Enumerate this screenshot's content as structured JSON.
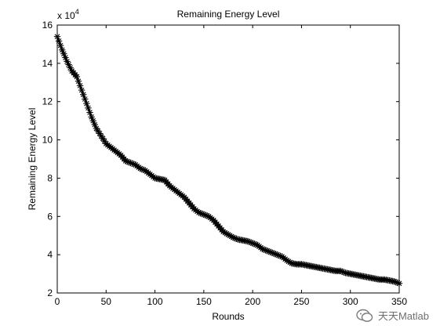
{
  "chart_data": {
    "type": "line",
    "title": "Remaining Energy Level",
    "xlabel": "Rounds",
    "ylabel": "Remaining Energy Level",
    "y_exponent_label": "x 10",
    "y_exponent_power": "4",
    "xlim": [
      0,
      350
    ],
    "ylim": [
      2,
      16
    ],
    "xticks": [
      0,
      50,
      100,
      150,
      200,
      250,
      300,
      350
    ],
    "yticks": [
      2,
      4,
      6,
      8,
      10,
      12,
      14,
      16
    ],
    "grid": false,
    "marker": "asterisk",
    "series": [
      {
        "color": "#000000",
        "x": [
          0,
          5,
          10,
          15,
          20,
          25,
          30,
          35,
          40,
          45,
          50,
          55,
          60,
          65,
          70,
          75,
          80,
          85,
          90,
          95,
          100,
          105,
          110,
          115,
          120,
          125,
          130,
          135,
          140,
          145,
          150,
          155,
          160,
          165,
          170,
          175,
          180,
          185,
          190,
          195,
          200,
          205,
          210,
          215,
          220,
          225,
          230,
          235,
          240,
          245,
          250,
          255,
          260,
          265,
          270,
          275,
          280,
          285,
          290,
          295,
          300,
          305,
          310,
          315,
          320,
          325,
          330,
          335,
          340,
          345,
          350
        ],
        "values": [
          15.4,
          14.7,
          14.1,
          13.6,
          13.3,
          12.6,
          11.9,
          11.2,
          10.6,
          10.2,
          9.8,
          9.6,
          9.4,
          9.2,
          8.9,
          8.8,
          8.7,
          8.5,
          8.4,
          8.2,
          8.0,
          7.95,
          7.9,
          7.6,
          7.4,
          7.2,
          7.0,
          6.7,
          6.4,
          6.2,
          6.1,
          6.0,
          5.8,
          5.5,
          5.2,
          5.05,
          4.9,
          4.8,
          4.75,
          4.7,
          4.6,
          4.5,
          4.3,
          4.2,
          4.1,
          4.0,
          3.9,
          3.7,
          3.55,
          3.5,
          3.5,
          3.45,
          3.4,
          3.35,
          3.3,
          3.25,
          3.2,
          3.15,
          3.15,
          3.05,
          3.0,
          2.95,
          2.9,
          2.85,
          2.8,
          2.75,
          2.7,
          2.7,
          2.65,
          2.6,
          2.5
        ]
      }
    ]
  },
  "watermark": {
    "text": "天天Matlab",
    "icon": "wechat-logo-icon"
  }
}
